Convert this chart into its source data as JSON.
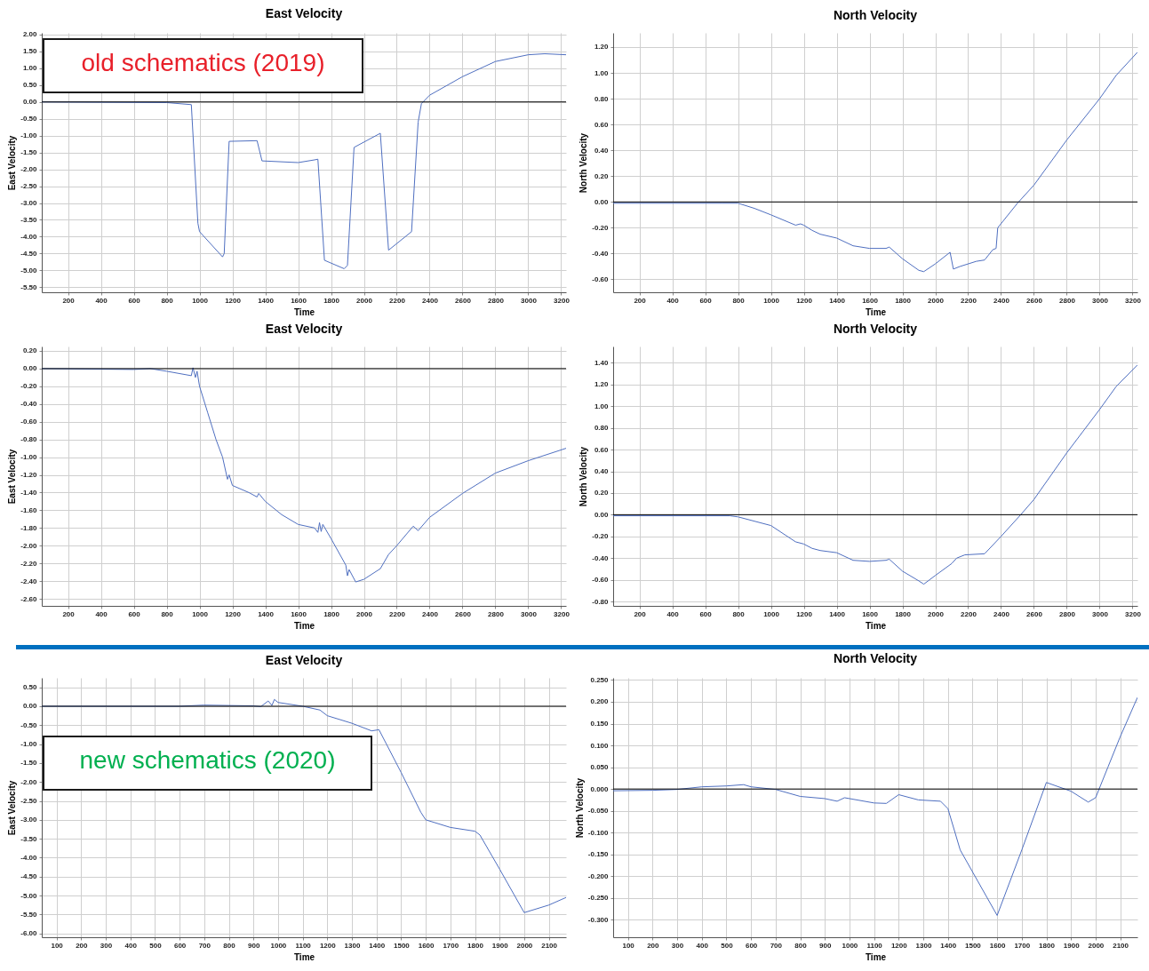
{
  "chart_data": [
    {
      "type": "line",
      "title": "East Velocity",
      "xlabel": "Time",
      "ylabel": "East Velocity",
      "color": "#4f6fc0",
      "annotations": [
        "old schematics (2019)"
      ],
      "grid": true,
      "ref_lines": [
        {
          "axis": "y",
          "value": 0,
          "color": "#000000"
        }
      ],
      "x": [
        40,
        800,
        950,
        990,
        1000,
        1140,
        1150,
        1180,
        1350,
        1380,
        1600,
        1700,
        1720,
        1760,
        1880,
        1900,
        1940,
        2100,
        2150,
        2290,
        2330,
        2350,
        2400,
        2600,
        2800,
        3000,
        3100,
        3230
      ],
      "values": [
        0,
        -0.02,
        -0.08,
        -3.6,
        -3.85,
        -4.6,
        -4.5,
        -1.17,
        -1.15,
        -1.75,
        -1.8,
        -1.72,
        -1.7,
        -4.7,
        -4.95,
        -4.85,
        -1.35,
        -0.93,
        -4.4,
        -3.85,
        -0.6,
        -0.05,
        0.2,
        0.75,
        1.2,
        1.4,
        1.43,
        1.4
      ],
      "xlim": [
        40,
        3230
      ],
      "xticks": [
        200,
        400,
        600,
        800,
        1000,
        1200,
        1400,
        1600,
        1800,
        2000,
        2200,
        2400,
        2600,
        2800,
        3000,
        3200
      ],
      "ylim": [
        -5.65,
        2.05
      ],
      "yticks": [
        {
          "value": 2,
          "label": "2.00"
        },
        {
          "value": 1.5,
          "label": "1.50"
        },
        {
          "value": 1,
          "label": "1.00"
        },
        {
          "value": 0.5,
          "label": "0.50"
        },
        {
          "value": 0,
          "label": "0.00"
        },
        {
          "value": -0.5,
          "label": "-0.50"
        },
        {
          "value": -1,
          "label": "-1.00"
        },
        {
          "value": -1.5,
          "label": "-1.50"
        },
        {
          "value": -2,
          "label": "-2.00"
        },
        {
          "value": -2.5,
          "label": "-2.50"
        },
        {
          "value": -3,
          "label": "-3.00"
        },
        {
          "value": -3.5,
          "label": "-3.50"
        },
        {
          "value": -4,
          "label": "-4.00"
        },
        {
          "value": -4.5,
          "label": "-4.50"
        },
        {
          "value": -5,
          "label": "-5.00"
        },
        {
          "value": -5.5,
          "label": "-5.50"
        }
      ]
    },
    {
      "type": "line",
      "title": "North Velocity",
      "xlabel": "Time",
      "ylabel": "North Velocity",
      "color": "#4f6fc0",
      "grid": true,
      "ref_lines": [
        {
          "axis": "y",
          "value": 0,
          "color": "#000000"
        }
      ],
      "x": [
        40,
        700,
        800,
        900,
        1000,
        1150,
        1180,
        1200,
        1250,
        1300,
        1400,
        1500,
        1600,
        1700,
        1720,
        1800,
        1900,
        1930,
        2000,
        2090,
        2110,
        2150,
        2250,
        2300,
        2350,
        2370,
        2380,
        2500,
        2600,
        2800,
        3000,
        3100,
        3230
      ],
      "values": [
        -0.01,
        -0.01,
        -0.01,
        -0.05,
        -0.1,
        -0.18,
        -0.17,
        -0.18,
        -0.22,
        -0.25,
        -0.28,
        -0.34,
        -0.36,
        -0.36,
        -0.35,
        -0.44,
        -0.53,
        -0.54,
        -0.48,
        -0.39,
        -0.52,
        -0.5,
        -0.46,
        -0.45,
        -0.37,
        -0.36,
        -0.2,
        -0.01,
        0.13,
        0.48,
        0.8,
        0.98,
        1.16
      ],
      "xlim": [
        40,
        3230
      ],
      "xticks": [
        200,
        400,
        600,
        800,
        1000,
        1200,
        1400,
        1600,
        1800,
        2000,
        2200,
        2400,
        2600,
        2800,
        3000,
        3200
      ],
      "ylim": [
        -0.7,
        1.31
      ],
      "yticks": [
        {
          "value": 1.2,
          "label": "1.20"
        },
        {
          "value": 1,
          "label": "1.00"
        },
        {
          "value": 0.8,
          "label": "0.80"
        },
        {
          "value": 0.6,
          "label": "0.60"
        },
        {
          "value": 0.4,
          "label": "0.40"
        },
        {
          "value": 0.2,
          "label": "0.20"
        },
        {
          "value": 0,
          "label": "0.00"
        },
        {
          "value": -0.2,
          "label": "-0.20"
        },
        {
          "value": -0.4,
          "label": "-0.40"
        },
        {
          "value": -0.6,
          "label": "-0.60"
        }
      ]
    },
    {
      "type": "line",
      "title": "East Velocity",
      "xlabel": "Time",
      "ylabel": "East Velocity",
      "color": "#4f6fc0",
      "grid": true,
      "ref_lines": [
        {
          "axis": "y",
          "value": 0,
          "color": "#000000"
        }
      ],
      "x": [
        40,
        600,
        700,
        800,
        950,
        960,
        975,
        985,
        1000,
        1050,
        1100,
        1140,
        1170,
        1180,
        1200,
        1300,
        1350,
        1360,
        1400,
        1500,
        1600,
        1700,
        1720,
        1730,
        1740,
        1750,
        1800,
        1890,
        1900,
        1910,
        1950,
        2000,
        2100,
        2150,
        2200,
        2300,
        2330,
        2400,
        2600,
        2800,
        3000,
        3230
      ],
      "values": [
        0,
        -0.01,
        0,
        -0.03,
        -0.08,
        0.01,
        -0.1,
        -0.03,
        -0.2,
        -0.5,
        -0.8,
        -1.0,
        -1.25,
        -1.2,
        -1.32,
        -1.4,
        -1.45,
        -1.41,
        -1.5,
        -1.65,
        -1.76,
        -1.8,
        -1.85,
        -1.74,
        -1.84,
        -1.76,
        -1.92,
        -2.22,
        -2.34,
        -2.27,
        -2.41,
        -2.38,
        -2.26,
        -2.1,
        -2.0,
        -1.78,
        -1.83,
        -1.68,
        -1.41,
        -1.18,
        -1.04,
        -0.9
      ],
      "xlim": [
        40,
        3230
      ],
      "xticks": [
        200,
        400,
        600,
        800,
        1000,
        1200,
        1400,
        1600,
        1800,
        2000,
        2200,
        2400,
        2600,
        2800,
        3000,
        3200
      ],
      "ylim": [
        -2.68,
        0.25
      ],
      "yticks": [
        {
          "value": 0.2,
          "label": "0.20"
        },
        {
          "value": 0,
          "label": "0.00"
        },
        {
          "value": -0.2,
          "label": "-0.20"
        },
        {
          "value": -0.4,
          "label": "-0.40"
        },
        {
          "value": -0.6,
          "label": "-0.60"
        },
        {
          "value": -0.8,
          "label": "-0.80"
        },
        {
          "value": -1,
          "label": "-1.00"
        },
        {
          "value": -1.2,
          "label": "-1.20"
        },
        {
          "value": -1.4,
          "label": "-1.40"
        },
        {
          "value": -1.6,
          "label": "-1.60"
        },
        {
          "value": -1.8,
          "label": "-1.80"
        },
        {
          "value": -2,
          "label": "-2.00"
        },
        {
          "value": -2.2,
          "label": "-2.20"
        },
        {
          "value": -2.4,
          "label": "-2.40"
        },
        {
          "value": -2.6,
          "label": "-2.60"
        }
      ]
    },
    {
      "type": "line",
      "title": "North Velocity",
      "xlabel": "Time",
      "ylabel": "North Velocity",
      "color": "#4f6fc0",
      "grid": true,
      "ref_lines": [
        {
          "axis": "y",
          "value": 0,
          "color": "#000000"
        }
      ],
      "x": [
        40,
        750,
        800,
        900,
        1000,
        1100,
        1150,
        1200,
        1250,
        1300,
        1400,
        1500,
        1600,
        1700,
        1720,
        1800,
        1900,
        1930,
        2000,
        2100,
        2130,
        2180,
        2300,
        2400,
        2520,
        2600,
        2800,
        3000,
        3100,
        3230
      ],
      "values": [
        -0.01,
        -0.01,
        -0.02,
        -0.06,
        -0.1,
        -0.2,
        -0.25,
        -0.27,
        -0.31,
        -0.33,
        -0.35,
        -0.42,
        -0.43,
        -0.42,
        -0.41,
        -0.52,
        -0.61,
        -0.64,
        -0.56,
        -0.45,
        -0.4,
        -0.37,
        -0.36,
        -0.2,
        0,
        0.14,
        0.57,
        0.97,
        1.18,
        1.38
      ],
      "xlim": [
        40,
        3230
      ],
      "xticks": [
        200,
        400,
        600,
        800,
        1000,
        1200,
        1400,
        1600,
        1800,
        2000,
        2200,
        2400,
        2600,
        2800,
        3000,
        3200
      ],
      "ylim": [
        -0.84,
        1.55
      ],
      "yticks": [
        {
          "value": 1.4,
          "label": "1.40"
        },
        {
          "value": 1.2,
          "label": "1.20"
        },
        {
          "value": 1,
          "label": "1.00"
        },
        {
          "value": 0.8,
          "label": "0.80"
        },
        {
          "value": 0.6,
          "label": "0.60"
        },
        {
          "value": 0.4,
          "label": "0.40"
        },
        {
          "value": 0.2,
          "label": "0.20"
        },
        {
          "value": 0,
          "label": "0.00"
        },
        {
          "value": -0.2,
          "label": "-0.20"
        },
        {
          "value": -0.4,
          "label": "-0.40"
        },
        {
          "value": -0.6,
          "label": "-0.60"
        },
        {
          "value": -0.8,
          "label": "-0.80"
        }
      ]
    },
    {
      "type": "line",
      "title": "East Velocity",
      "xlabel": "Time",
      "ylabel": "East Velocity",
      "color": "#4f6fc0",
      "annotations": [
        "new schematics (2020)"
      ],
      "grid": true,
      "ref_lines": [
        {
          "axis": "y",
          "value": 0,
          "color": "#000000"
        }
      ],
      "x": [
        40,
        600,
        700,
        900,
        930,
        960,
        975,
        985,
        1000,
        1100,
        1170,
        1200,
        1300,
        1380,
        1410,
        1500,
        1580,
        1600,
        1700,
        1800,
        1820,
        1900,
        2000,
        2100,
        2170
      ],
      "values": [
        0,
        0,
        0.03,
        0.01,
        -0.01,
        0.14,
        0.02,
        0.18,
        0.1,
        0,
        -0.1,
        -0.25,
        -0.45,
        -0.65,
        -0.62,
        -1.75,
        -2.8,
        -3.0,
        -3.2,
        -3.3,
        -3.4,
        -4.3,
        -5.45,
        -5.25,
        -5.05
      ],
      "xlim": [
        40,
        2170
      ],
      "xticks": [
        100,
        200,
        300,
        400,
        500,
        600,
        700,
        800,
        900,
        1000,
        1100,
        1200,
        1300,
        1400,
        1500,
        1600,
        1700,
        1800,
        1900,
        2000,
        2100
      ],
      "ylim": [
        -6.1,
        0.75
      ],
      "yticks": [
        {
          "value": 0.5,
          "label": "0.50"
        },
        {
          "value": 0,
          "label": "0.00"
        },
        {
          "value": -0.5,
          "label": "-0.50"
        },
        {
          "value": -1,
          "label": "-1.00"
        },
        {
          "value": -1.5,
          "label": "-1.50"
        },
        {
          "value": -2,
          "label": "-2.00"
        },
        {
          "value": -2.5,
          "label": "-2.50"
        },
        {
          "value": -3,
          "label": "-3.00"
        },
        {
          "value": -3.5,
          "label": "-3.50"
        },
        {
          "value": -4,
          "label": "-4.00"
        },
        {
          "value": -4.5,
          "label": "-4.50"
        },
        {
          "value": -5,
          "label": "-5.00"
        },
        {
          "value": -5.5,
          "label": "-5.50"
        },
        {
          "value": -6,
          "label": "-6.00"
        }
      ]
    },
    {
      "type": "line",
      "title": "North Velocity",
      "xlabel": "Time",
      "ylabel": "North Velocity",
      "color": "#4f6fc0",
      "grid": true,
      "ref_lines": [
        {
          "axis": "y",
          "value": 0,
          "color": "#000000"
        }
      ],
      "x": [
        40,
        200,
        300,
        400,
        500,
        570,
        600,
        700,
        800,
        900,
        950,
        980,
        1100,
        1150,
        1200,
        1280,
        1370,
        1400,
        1450,
        1520,
        1600,
        1700,
        1800,
        1900,
        1970,
        2000,
        2050,
        2100,
        2170
      ],
      "values": [
        -0.004,
        -0.003,
        -0.001,
        0.005,
        0.007,
        0.01,
        0.005,
        -0.001,
        -0.017,
        -0.022,
        -0.028,
        -0.02,
        -0.032,
        -0.033,
        -0.013,
        -0.025,
        -0.028,
        -0.045,
        -0.14,
        -0.21,
        -0.29,
        -0.14,
        0.015,
        -0.005,
        -0.03,
        -0.02,
        0.05,
        0.12,
        0.21
      ],
      "xlim": [
        40,
        2170
      ],
      "xticks": [
        100,
        200,
        300,
        400,
        500,
        600,
        700,
        800,
        900,
        1000,
        1100,
        1200,
        1300,
        1400,
        1500,
        1600,
        1700,
        1800,
        1900,
        2000,
        2100
      ],
      "ylim": [
        -0.34,
        0.255
      ],
      "yticks": [
        {
          "value": 0.25,
          "label": "0.250"
        },
        {
          "value": 0.2,
          "label": "0.200"
        },
        {
          "value": 0.15,
          "label": "0.150"
        },
        {
          "value": 0.1,
          "label": "0.100"
        },
        {
          "value": 0.05,
          "label": "0.050"
        },
        {
          "value": 0,
          "label": "0.000"
        },
        {
          "value": -0.05,
          "label": "-0.050"
        },
        {
          "value": -0.1,
          "label": "-0.100"
        },
        {
          "value": -0.15,
          "label": "-0.150"
        },
        {
          "value": -0.2,
          "label": "-0.200"
        },
        {
          "value": -0.25,
          "label": "-0.250"
        },
        {
          "value": -0.3,
          "label": "-0.300"
        }
      ]
    }
  ]
}
